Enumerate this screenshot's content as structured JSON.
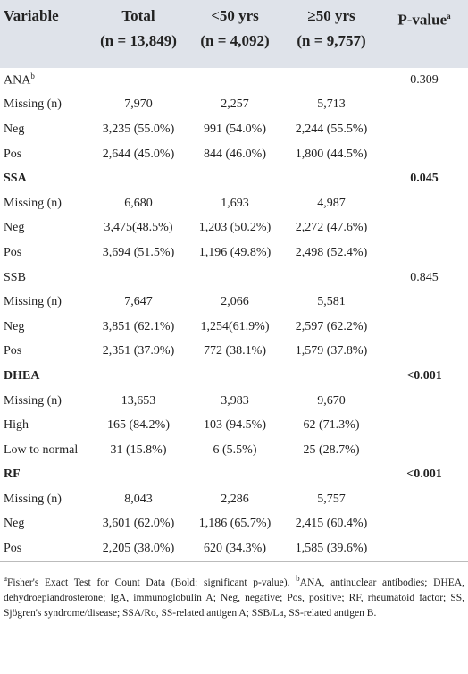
{
  "table": {
    "header": [
      {
        "label": "Variable"
      },
      {
        "label": "Total",
        "n": "(n = 13,849)"
      },
      {
        "label": "<50 yrs",
        "n": "(n = 4,092)"
      },
      {
        "label": "≥50 yrs",
        "n": "(n = 9,757)"
      },
      {
        "label": "P-value",
        "sup": "a"
      }
    ],
    "groups": [
      {
        "name": "ANA",
        "sup": "b",
        "p_value": "0.309",
        "bold": false,
        "rows": [
          [
            "Missing (n)",
            "7,970",
            "2,257",
            "5,713"
          ],
          [
            "Neg",
            "3,235 (55.0%)",
            "991 (54.0%)",
            "2,244 (55.5%)"
          ],
          [
            "Pos",
            "2,644 (45.0%)",
            "844 (46.0%)",
            "1,800 (44.5%)"
          ]
        ]
      },
      {
        "name": "SSA",
        "p_value": "0.045",
        "bold": true,
        "rows": [
          [
            "Missing (n)",
            "6,680",
            "1,693",
            "4,987"
          ],
          [
            "Neg",
            "3,475(48.5%)",
            "1,203 (50.2%)",
            "2,272 (47.6%)"
          ],
          [
            "Pos",
            "3,694 (51.5%)",
            "1,196 (49.8%)",
            "2,498 (52.4%)"
          ]
        ]
      },
      {
        "name": "SSB",
        "p_value": "0.845",
        "bold": false,
        "rows": [
          [
            "Missing (n)",
            "7,647",
            "2,066",
            "5,581"
          ],
          [
            "Neg",
            "3,851 (62.1%)",
            "1,254(61.9%)",
            "2,597 (62.2%)"
          ],
          [
            "Pos",
            "2,351 (37.9%)",
            "772 (38.1%)",
            "1,579 (37.8%)"
          ]
        ]
      },
      {
        "name": "DHEA",
        "p_value": "<0.001",
        "bold": true,
        "rows": [
          [
            "Missing (n)",
            "13,653",
            "3,983",
            "9,670"
          ],
          [
            "High",
            "165 (84.2%)",
            "103 (94.5%)",
            "62 (71.3%)"
          ],
          [
            "Low to normal",
            "31 (15.8%)",
            "6 (5.5%)",
            "25 (28.7%)"
          ]
        ]
      },
      {
        "name": "RF",
        "p_value": "<0.001",
        "bold": true,
        "rows": [
          [
            "Missing (n)",
            "8,043",
            "2,286",
            "5,757"
          ],
          [
            "Neg",
            "3,601 (62.0%)",
            "1,186 (65.7%)",
            "2,415 (60.4%)"
          ],
          [
            "Pos",
            "2,205 (38.0%)",
            "620 (34.3%)",
            "1,585 (39.6%)"
          ]
        ]
      }
    ],
    "footnote": [
      {
        "sup": "a",
        "text": "Fisher's Exact Test for Count Data (Bold: significant p-value). "
      },
      {
        "sup": "b",
        "text": "ANA, antinuclear antibodies; DHEA, dehydroepiandrosterone; IgA, immunoglobulin A; Neg, negative; Pos, positive; RF, rheumatoid factor; SS, Sjögren's syndrome/disease; SSA/Ro, SS-related antigen A; SSB/La, SS-related antigen B."
      }
    ]
  }
}
